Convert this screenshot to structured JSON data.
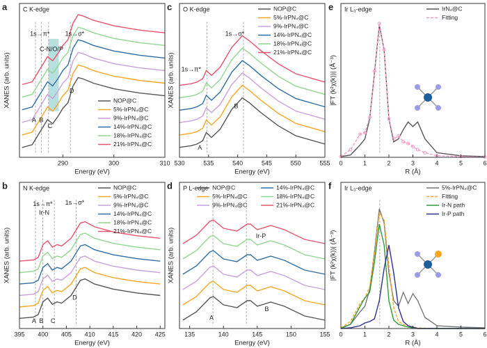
{
  "chart_data": [
    {
      "type": "line",
      "label": "a",
      "title": "C K-edge",
      "xlabel": "Energy (eV)",
      "ylabel": "XANES (arb. units)",
      "x": [
        282,
        284,
        286,
        287,
        288,
        289,
        290,
        291,
        292,
        293,
        294,
        296,
        300,
        305,
        310
      ],
      "xlim": [
        281.5,
        310
      ],
      "xticks": [
        290,
        300,
        310
      ],
      "ylim": [
        -0.5,
        10.5
      ],
      "legend": "lower right",
      "annotations": [
        "1s→π*",
        "C-N/O/P",
        "1s→σ*",
        "A",
        "B",
        "C",
        "D"
      ],
      "series": [
        {
          "name": "NOP@C",
          "color": "#555555",
          "values": [
            0.2,
            0.4,
            1.6,
            2.2,
            1.9,
            2.4,
            3.0,
            3.4,
            4.6,
            5.2,
            5.1,
            4.8,
            4.4,
            4.1,
            3.9
          ]
        },
        {
          "name": "5%-IrPN₄@C",
          "color": "#f5a623",
          "values": [
            1.1,
            1.3,
            2.5,
            3.1,
            2.8,
            3.3,
            3.9,
            4.3,
            5.5,
            6.1,
            6.0,
            5.7,
            5.3,
            5.0,
            4.8
          ]
        },
        {
          "name": "9%-IrPN₄@C",
          "color": "#c9a0dc",
          "values": [
            2.0,
            2.2,
            3.4,
            4.0,
            3.7,
            4.2,
            4.8,
            5.2,
            6.4,
            7.0,
            6.9,
            6.6,
            6.2,
            5.9,
            5.7
          ]
        },
        {
          "name": "14%-IrPN₄@C",
          "color": "#2e6da4",
          "values": [
            2.9,
            3.1,
            4.3,
            4.9,
            4.6,
            5.1,
            5.7,
            6.1,
            7.3,
            7.9,
            7.8,
            7.5,
            7.1,
            6.8,
            6.6
          ]
        },
        {
          "name": "18%-IrPN₄@C",
          "color": "#8fd68f",
          "values": [
            3.8,
            4.0,
            5.2,
            5.8,
            5.5,
            6.0,
            6.6,
            7.0,
            8.2,
            8.8,
            8.7,
            8.4,
            8.0,
            7.7,
            7.5
          ]
        },
        {
          "name": "21%-IrPN₄@C",
          "color": "#e8536e",
          "values": [
            4.7,
            4.9,
            6.1,
            6.7,
            6.4,
            6.9,
            7.5,
            7.9,
            9.1,
            9.7,
            9.6,
            9.3,
            8.9,
            8.6,
            8.4
          ]
        }
      ]
    },
    {
      "type": "line",
      "label": "b",
      "title": "N K-edge",
      "xlabel": "Energy (eV)",
      "ylabel": "XANES (arb. units)",
      "x": [
        395,
        398,
        399,
        400,
        401,
        402,
        403,
        404,
        406,
        408,
        409,
        411,
        415,
        420,
        425
      ],
      "xlim": [
        395,
        426
      ],
      "xticks": [
        395,
        400,
        405,
        410,
        415,
        420,
        425
      ],
      "ylim": [
        -0.5,
        11
      ],
      "legend": "upper right",
      "annotations": [
        "1s→π*",
        "Ir-N",
        "1s→σ*",
        "A",
        "B",
        "C",
        "D"
      ],
      "series": [
        {
          "name": "NOP@C",
          "color": "#555555",
          "values": [
            0.3,
            0.4,
            0.6,
            1.6,
            1.9,
            1.4,
            1.6,
            1.5,
            2.1,
            3.3,
            3.4,
            3.0,
            2.6,
            2.3,
            2.1
          ]
        },
        {
          "name": "5%-IrPN₄@C",
          "color": "#f5a623",
          "values": [
            1.2,
            1.3,
            1.5,
            2.5,
            2.8,
            2.3,
            2.5,
            2.4,
            3.0,
            4.2,
            4.3,
            3.9,
            3.5,
            3.2,
            3.0
          ]
        },
        {
          "name": "9%-IrPN₄@C",
          "color": "#c9a0dc",
          "values": [
            2.1,
            2.2,
            2.4,
            3.4,
            3.7,
            3.2,
            3.4,
            3.3,
            3.9,
            5.1,
            5.2,
            4.8,
            4.4,
            4.1,
            3.9
          ]
        },
        {
          "name": "14%-IrPN₄@C",
          "color": "#2e6da4",
          "values": [
            3.0,
            3.1,
            3.3,
            4.3,
            4.6,
            4.1,
            4.3,
            4.2,
            4.8,
            6.0,
            6.1,
            5.7,
            5.3,
            5.0,
            4.8
          ]
        },
        {
          "name": "18%-IrPN₄@C",
          "color": "#8fd68f",
          "values": [
            3.9,
            4.0,
            4.2,
            5.2,
            5.5,
            5.0,
            5.2,
            5.1,
            5.7,
            6.9,
            7.0,
            6.6,
            6.2,
            5.9,
            5.7
          ]
        },
        {
          "name": "21%-IrPN₄@C",
          "color": "#e8536e",
          "values": [
            4.8,
            4.9,
            5.1,
            6.1,
            6.4,
            5.9,
            6.1,
            6.0,
            6.6,
            7.8,
            7.9,
            7.5,
            7.1,
            6.8,
            6.6
          ]
        }
      ]
    },
    {
      "type": "line",
      "label": "c",
      "title": "O K-edge",
      "xlabel": "Energy (eV)",
      "ylabel": "XANES (arb. units)",
      "x": [
        530,
        532,
        533,
        534,
        534.6,
        535.5,
        537,
        539,
        540.8,
        542,
        544,
        547,
        550,
        555
      ],
      "xlim": [
        530,
        555
      ],
      "xticks": [
        530,
        535,
        540,
        545,
        550,
        555
      ],
      "ylim": [
        -0.3,
        9
      ],
      "legend": "upper right",
      "annotations": [
        "1s→π*",
        "1s→σ*",
        "A",
        "B"
      ],
      "series": [
        {
          "name": "NOP@C",
          "color": "#555555",
          "values": [
            0.3,
            0.4,
            0.5,
            0.7,
            1.2,
            0.9,
            1.4,
            2.6,
            3.3,
            3.0,
            2.4,
            1.6,
            1.0,
            0.5
          ]
        },
        {
          "name": "5%-IrPN₄@C",
          "color": "#f5a623",
          "values": [
            1.05,
            1.15,
            1.25,
            1.45,
            1.95,
            1.65,
            2.15,
            3.35,
            4.05,
            3.75,
            3.15,
            2.35,
            1.75,
            1.25
          ]
        },
        {
          "name": "9%-IrPN₄@C",
          "color": "#c9a0dc",
          "values": [
            1.8,
            1.9,
            2.0,
            2.2,
            2.7,
            2.4,
            2.9,
            4.1,
            4.8,
            4.5,
            3.9,
            3.1,
            2.5,
            2.0
          ]
        },
        {
          "name": "14%-IrPN₄@C",
          "color": "#2e6da4",
          "values": [
            2.55,
            2.65,
            2.75,
            2.95,
            3.45,
            3.15,
            3.65,
            4.85,
            5.55,
            5.25,
            4.65,
            3.85,
            3.25,
            2.75
          ]
        },
        {
          "name": "18%-IrPN₄@C",
          "color": "#8fd68f",
          "values": [
            3.3,
            3.4,
            3.5,
            3.7,
            4.2,
            3.9,
            4.4,
            5.6,
            6.3,
            6.0,
            5.4,
            4.6,
            4.0,
            3.5
          ]
        },
        {
          "name": "21%-IrPN₄@C",
          "color": "#e8536e",
          "values": [
            4.05,
            4.15,
            4.25,
            4.45,
            4.95,
            4.65,
            5.15,
            6.35,
            7.05,
            6.75,
            6.15,
            5.35,
            4.75,
            4.25
          ]
        }
      ]
    },
    {
      "type": "line",
      "label": "d",
      "title": "P L-edge",
      "xlabel": "Energy (eV)",
      "ylabel": "XANES (arb. units)",
      "x": [
        134,
        136,
        138,
        138.5,
        140,
        142,
        143.5,
        144,
        145,
        147,
        149,
        152,
        155
      ],
      "xlim": [
        133.5,
        155
      ],
      "xticks": [
        135,
        140,
        145,
        150,
        155
      ],
      "ylim": [
        0,
        10.5
      ],
      "legend": "upper center",
      "annotations": [
        "Ir-P",
        "A",
        "B"
      ],
      "series": [
        {
          "name": "NOP@C",
          "color": "#555555",
          "values": [
            0.6,
            1.2,
            2.2,
            2.3,
            1.7,
            1.5,
            2.0,
            2.0,
            1.6,
            1.9,
            1.6,
            0.9,
            0.6
          ]
        },
        {
          "name": "5%-IrPN₄@C",
          "color": "#f5a623",
          "values": [
            1.7,
            2.3,
            3.3,
            3.4,
            2.8,
            2.6,
            3.1,
            3.1,
            2.7,
            3.0,
            2.7,
            2.0,
            1.7
          ]
        },
        {
          "name": "9%-IrPN₄@C",
          "color": "#c9a0dc",
          "values": [
            2.8,
            3.4,
            4.4,
            4.5,
            3.9,
            3.7,
            4.2,
            4.2,
            3.8,
            4.1,
            3.8,
            3.1,
            2.8
          ]
        },
        {
          "name": "14%-IrPN₄@C",
          "color": "#2e6da4",
          "values": [
            3.9,
            4.5,
            5.5,
            5.6,
            5.0,
            4.8,
            5.3,
            5.3,
            4.9,
            5.2,
            4.9,
            4.2,
            3.9
          ]
        },
        {
          "name": "18%-IrPN₄@C",
          "color": "#8fd68f",
          "values": [
            5.0,
            5.6,
            6.6,
            6.7,
            6.1,
            5.9,
            6.4,
            6.4,
            6.0,
            6.3,
            6.0,
            5.3,
            5.0
          ]
        },
        {
          "name": "21%-IrPN₄@C",
          "color": "#e8536e",
          "values": [
            6.1,
            6.7,
            7.7,
            7.8,
            7.2,
            7.0,
            7.5,
            7.5,
            7.1,
            7.4,
            7.1,
            6.4,
            6.1
          ]
        }
      ]
    },
    {
      "type": "line",
      "label": "e",
      "title": "Ir L₃-edge",
      "xlabel": "R (Å)",
      "ylabel": "|FT (k²χ(k))| (Å⁻³)",
      "x": [
        0,
        0.4,
        0.8,
        1.0,
        1.2,
        1.4,
        1.6,
        1.8,
        2.0,
        2.2,
        2.4,
        2.6,
        2.8,
        3.0,
        3.2,
        3.5,
        4.0,
        5.0,
        6.0
      ],
      "xlim": [
        0,
        6
      ],
      "xticks": [
        0,
        1,
        2,
        3,
        4,
        5,
        6
      ],
      "ylim": [
        0,
        10
      ],
      "legend": "upper right",
      "annotations": [],
      "series": [
        {
          "name": "IrN₄@C",
          "color": "#555555",
          "values": [
            0.05,
            0.15,
            0.8,
            1.2,
            2.5,
            5.5,
            8.6,
            7.0,
            2.5,
            1.0,
            1.2,
            1.8,
            2.3,
            2.0,
            2.3,
            1.2,
            0.3,
            0.1,
            0.05
          ]
        },
        {
          "name": "Fitting",
          "color": "#f29ac4",
          "dash": true,
          "marker": "circle",
          "values": [
            0.05,
            0.5,
            1.5,
            1.6,
            2.6,
            5.6,
            8.7,
            7.0,
            2.5,
            1.2,
            1.4,
            1.0,
            0.9,
            0.7,
            0.5,
            0.3,
            0.1,
            0.05,
            0.02
          ]
        }
      ]
    },
    {
      "type": "line",
      "label": "f",
      "title": "Ir L₃-edge",
      "xlabel": "R (Å)",
      "ylabel": "|FT (k²χ(k))| (Å⁻³)",
      "x": [
        0,
        0.4,
        0.8,
        1.0,
        1.2,
        1.4,
        1.6,
        1.8,
        2.0,
        2.2,
        2.4,
        2.6,
        2.8,
        3.0,
        3.2,
        3.5,
        4.0,
        5.0,
        6.0
      ],
      "xlim": [
        0,
        6
      ],
      "xticks": [
        0,
        1,
        2,
        3,
        4,
        5,
        6
      ],
      "ylim": [
        0,
        10.5
      ],
      "legend": "upper right",
      "annotations": [],
      "series": [
        {
          "name": "5%-IrPN₄@C",
          "color": "#777777",
          "values": [
            0.05,
            0.3,
            1.2,
            1.6,
            2.8,
            5.5,
            8.6,
            7.6,
            4.0,
            2.0,
            1.6,
            2.6,
            1.8,
            2.5,
            2.0,
            0.8,
            0.2,
            0.1,
            0.05
          ]
        },
        {
          "name": "Fitting",
          "color": "#f5a623",
          "dash": true,
          "values": [
            0.05,
            0.5,
            1.8,
            2.2,
            3.0,
            5.3,
            8.3,
            7.8,
            4.5,
            1.5,
            0.5,
            0.3,
            0.2,
            0.1,
            0.05,
            0.02,
            0,
            0,
            0
          ]
        },
        {
          "name": "Ir-N path",
          "color": "#2e9a3a",
          "values": [
            0,
            0.3,
            1.6,
            2.2,
            2.6,
            4.8,
            7.5,
            6.0,
            2.0,
            0.6,
            0.3,
            0.2,
            0.1,
            0.05,
            0,
            0,
            0,
            0,
            0
          ]
        },
        {
          "name": "Ir-P path",
          "color": "#2b2f8f",
          "values": [
            0,
            0.05,
            0.2,
            0.4,
            0.5,
            0.7,
            2.0,
            4.3,
            6.0,
            4.0,
            1.5,
            0.5,
            0.2,
            0.1,
            0,
            0,
            0,
            0,
            0
          ]
        }
      ]
    }
  ]
}
